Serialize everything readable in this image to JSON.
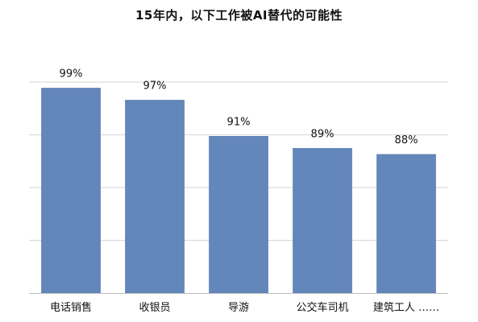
{
  "chart_data": {
    "type": "bar",
    "title": "15年内，以下工作被AI替代的可能性",
    "categories": [
      "电话销售",
      "收银员",
      "导游",
      "公交车司机",
      "建筑工人 ……"
    ],
    "values": [
      99,
      97,
      91,
      89,
      88
    ],
    "value_labels": [
      "99%",
      "97%",
      "91%",
      "89%",
      "88%"
    ],
    "xlabel": "",
    "ylabel": "",
    "ylim": [
      65,
      100
    ],
    "grid": true,
    "legend": "none",
    "bar_color": "#6387bb",
    "bar_edge_color": "#4f72a6",
    "grid_color": "#d6d6d6"
  }
}
